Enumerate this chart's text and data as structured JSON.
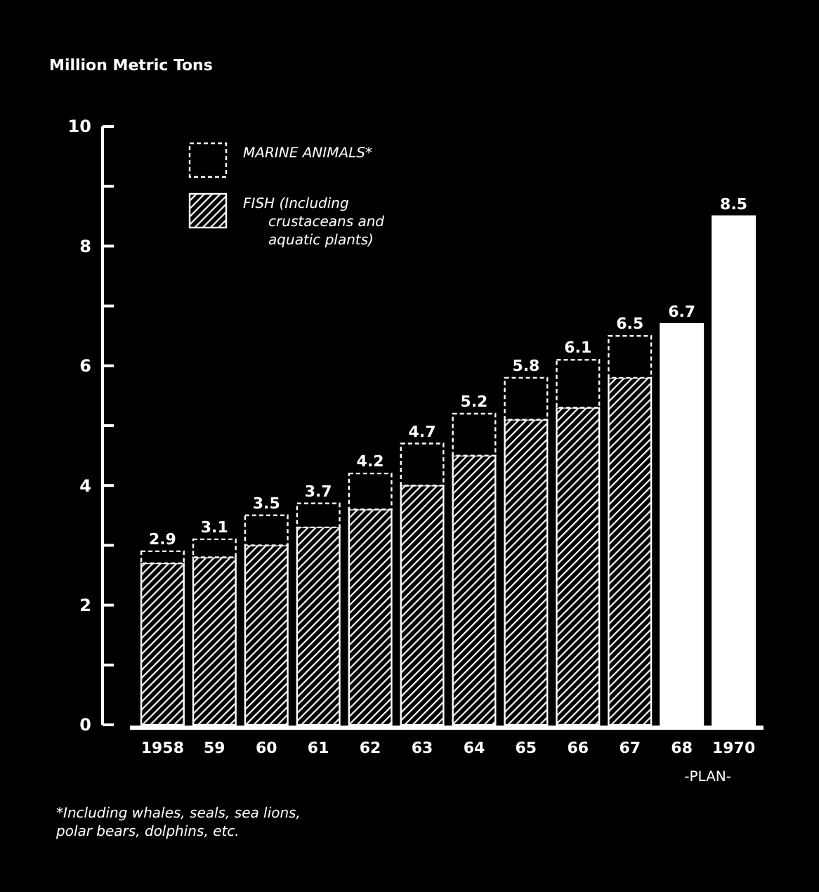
{
  "chart_data": {
    "type": "bar",
    "ylabel": "Million Metric Tons",
    "categories": [
      "1958",
      "59",
      "60",
      "61",
      "62",
      "63",
      "64",
      "65",
      "66",
      "67",
      "68",
      "1970"
    ],
    "stacked": true,
    "series": [
      {
        "name": "FISH (Including crustaceans and aquatic plants)",
        "color": "#ffffff",
        "values": [
          2.7,
          2.8,
          3.0,
          3.3,
          3.6,
          4.0,
          4.5,
          5.1,
          5.3,
          5.8,
          null,
          null
        ]
      },
      {
        "name": "MARINE ANIMALS*",
        "color": "#000000",
        "values": [
          0.2,
          0.3,
          0.5,
          0.4,
          0.6,
          0.7,
          0.7,
          0.7,
          0.8,
          0.7,
          null,
          null
        ]
      },
      {
        "color": "#ffffff",
        "values": [
          null,
          null,
          null,
          null,
          null,
          null,
          null,
          null,
          null,
          null,
          6.7,
          8.5
        ]
      }
    ],
    "totals": [
      "2.9",
      "3.1",
      "3.5",
      "3.7",
      "4.2",
      "4.7",
      "5.2",
      "5.8",
      "6.1",
      "6.5",
      "6.7",
      "8.5"
    ],
    "ylim": [
      0,
      10
    ],
    "yticks": [
      0,
      {
        "value": 1,
        "label": null
      },
      2,
      {
        "value": 3,
        "label": null
      },
      4,
      {
        "value": 5,
        "label": null
      },
      6,
      {
        "value": 7,
        "label": null
      },
      8,
      {
        "value": 9,
        "label": null
      },
      10
    ],
    "legend": "top left",
    "annotations": [
      "-PLAN-",
      "*Including whales, seals, sea lions, polar bears, dolphins, etc."
    ]
  }
}
